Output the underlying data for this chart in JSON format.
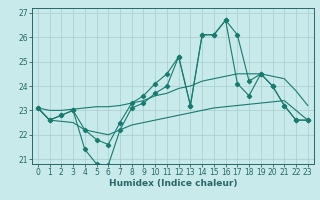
{
  "xlabel": "Humidex (Indice chaleur)",
  "bg_color": "#c8eaea",
  "grid_color": "#a8cccc",
  "line_color": "#1a7a6e",
  "xlim": [
    -0.5,
    23.5
  ],
  "ylim": [
    20.8,
    27.2
  ],
  "yticks": [
    21,
    22,
    23,
    24,
    25,
    26,
    27
  ],
  "xticks": [
    0,
    1,
    2,
    3,
    4,
    5,
    6,
    7,
    8,
    9,
    10,
    11,
    12,
    13,
    14,
    15,
    16,
    17,
    18,
    19,
    20,
    21,
    22,
    23
  ],
  "series_marked": [
    [
      23.1,
      22.6,
      22.8,
      23.0,
      21.4,
      20.8,
      20.75,
      22.2,
      23.1,
      23.3,
      23.7,
      24.0,
      25.2,
      23.2,
      26.1,
      26.1,
      26.7,
      26.1,
      24.2,
      24.5,
      24.0,
      23.2,
      22.6,
      22.6
    ],
    [
      23.1,
      22.6,
      22.8,
      23.0,
      22.2,
      21.8,
      21.6,
      22.5,
      23.3,
      23.6,
      24.1,
      24.5,
      25.2,
      23.2,
      26.1,
      26.1,
      26.7,
      24.1,
      23.6,
      24.5,
      24.0,
      23.2,
      22.6,
      22.6
    ]
  ],
  "series_plain": [
    [
      23.1,
      23.0,
      23.0,
      23.05,
      23.1,
      23.15,
      23.15,
      23.2,
      23.3,
      23.4,
      23.6,
      23.7,
      23.9,
      24.0,
      24.2,
      24.3,
      24.4,
      24.5,
      24.5,
      24.5,
      24.4,
      24.3,
      23.8,
      23.2
    ],
    [
      23.1,
      22.6,
      22.55,
      22.5,
      22.2,
      22.1,
      22.0,
      22.2,
      22.4,
      22.5,
      22.6,
      22.7,
      22.8,
      22.9,
      23.0,
      23.1,
      23.15,
      23.2,
      23.25,
      23.3,
      23.35,
      23.4,
      23.0,
      22.6
    ]
  ]
}
